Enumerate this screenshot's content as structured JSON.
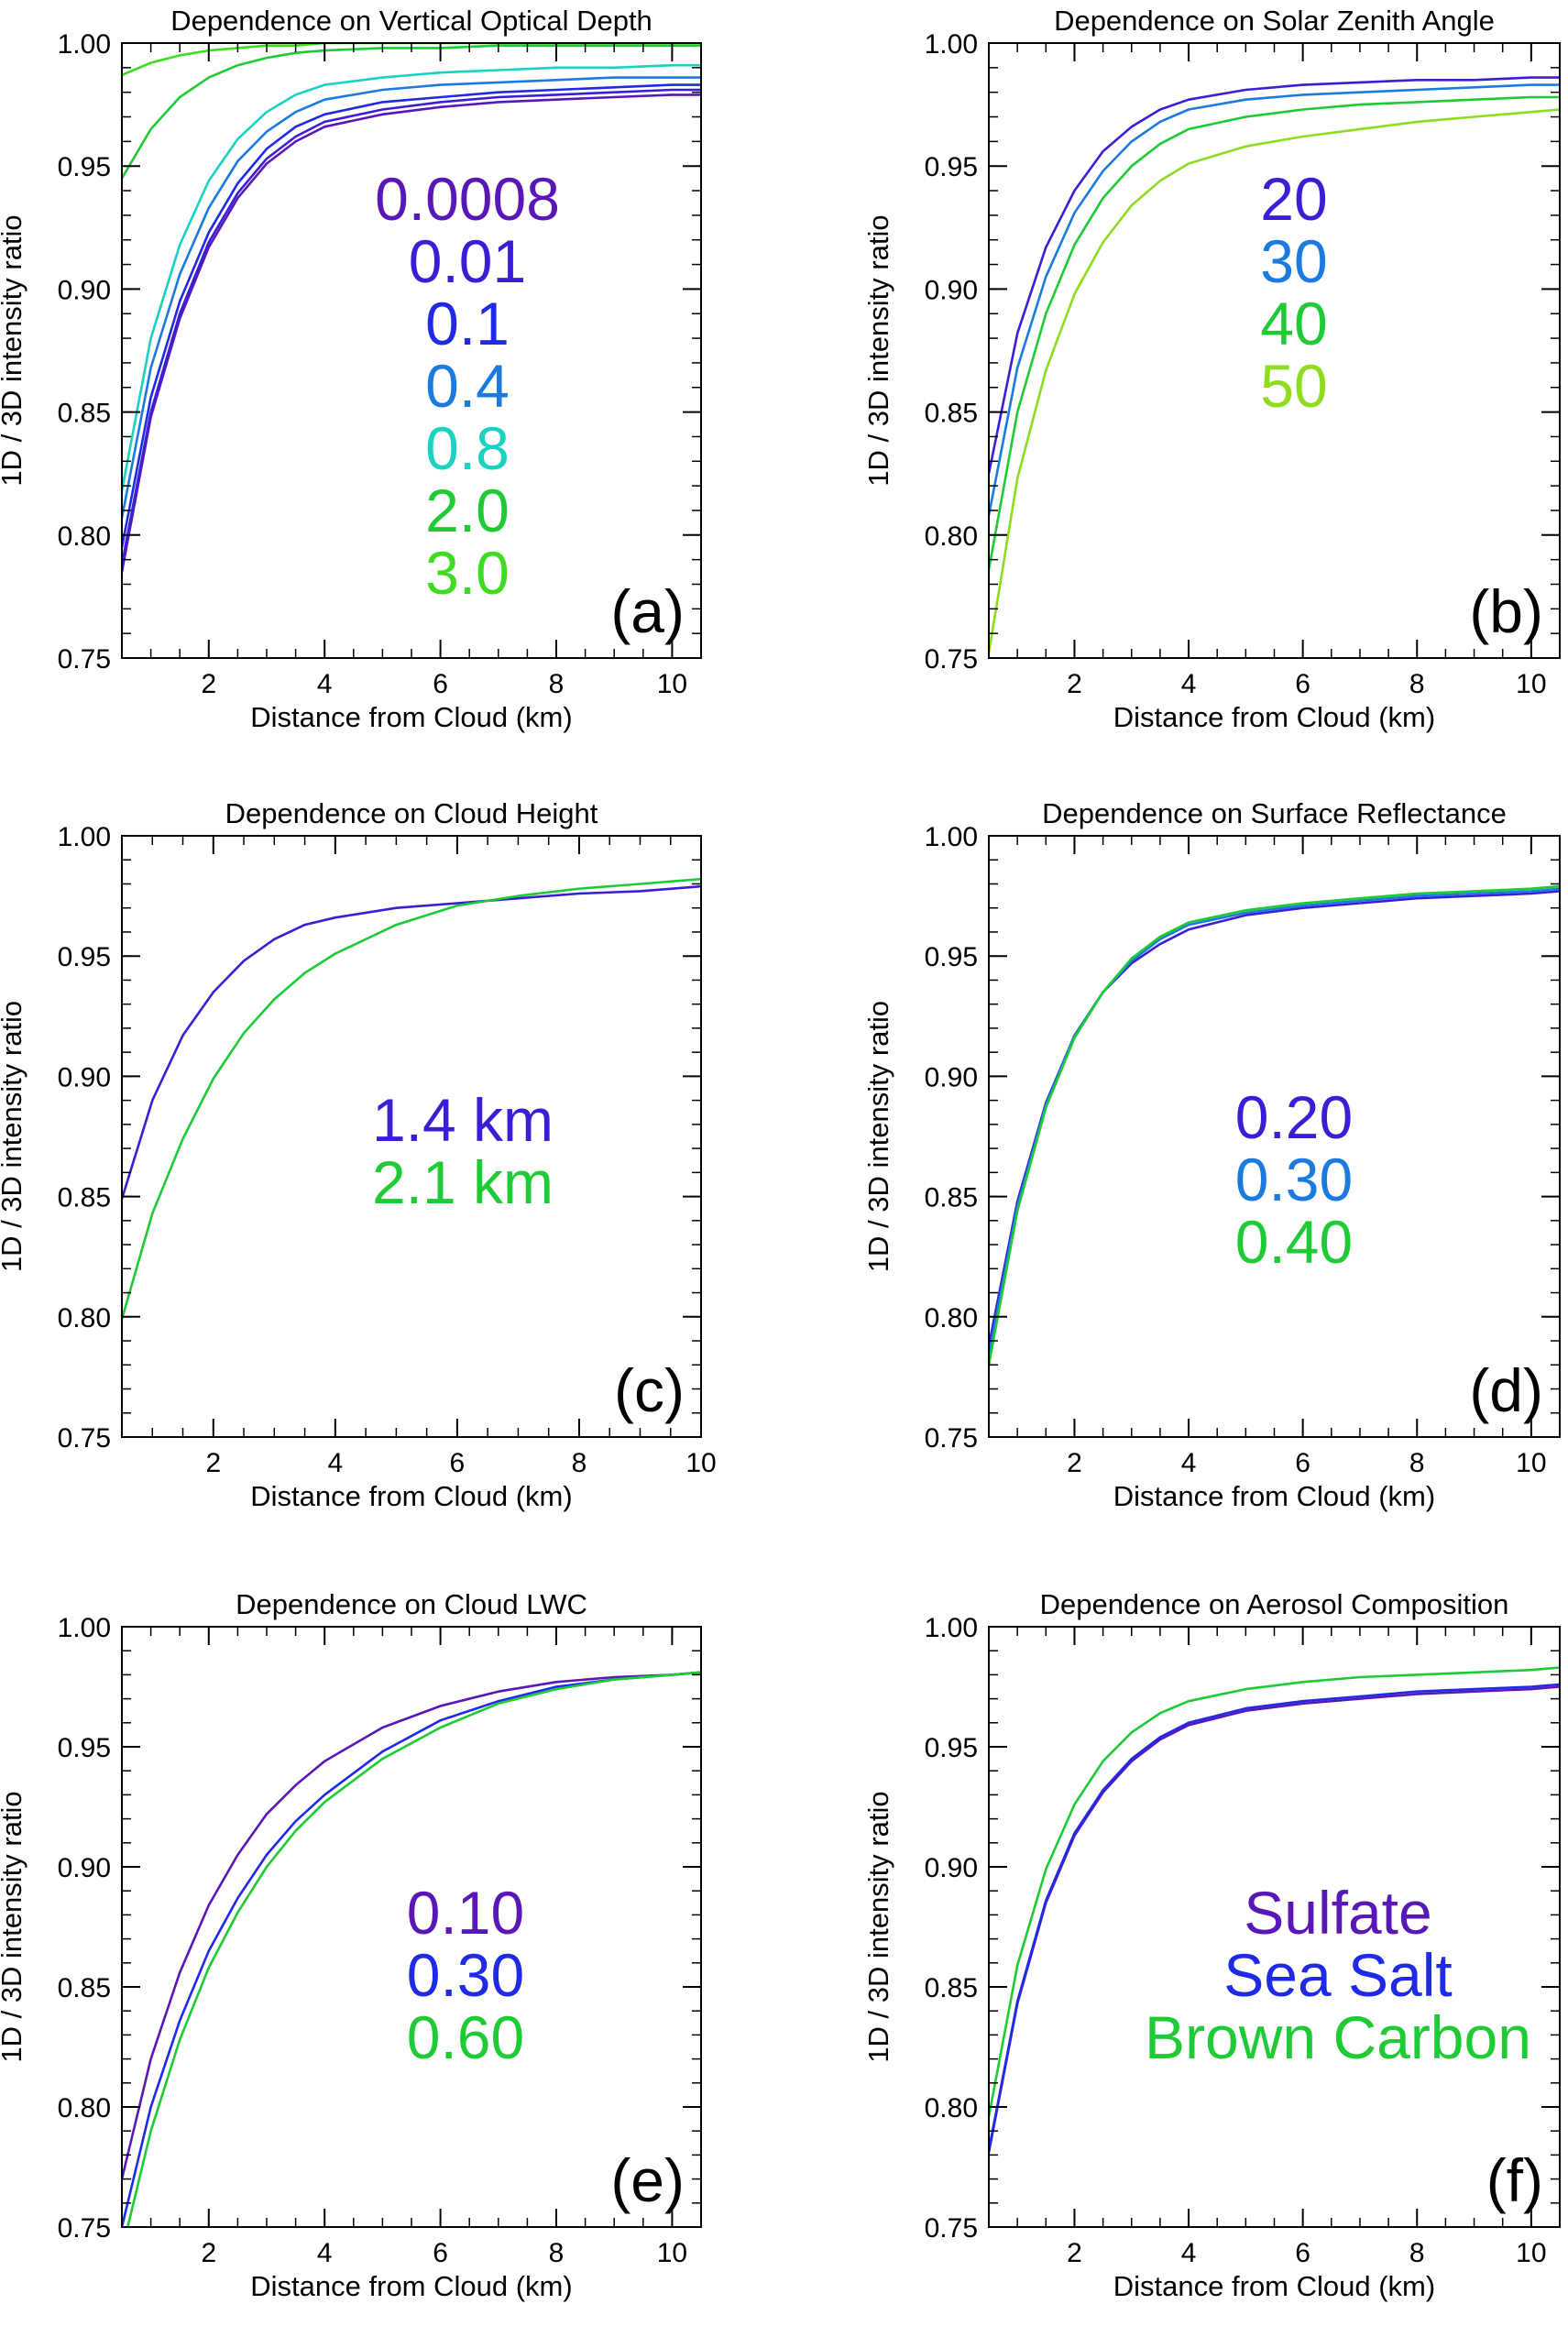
{
  "chart_data": [
    {
      "type": "line",
      "title": "Dependence on Vertical Optical Depth",
      "xlabel": "Distance from Cloud (km)",
      "ylabel": "1D / 3D intensity ratio",
      "xlim": [
        0.5,
        10.5
      ],
      "ylim": [
        0.75,
        1.0
      ],
      "xticks": [
        "2",
        "4",
        "6",
        "8",
        "10"
      ],
      "yticks": [
        "0.75",
        "0.80",
        "0.85",
        "0.90",
        "0.95",
        "1.00"
      ],
      "panel_label": "(a)",
      "legend_placement": "center",
      "x": [
        0.5,
        1,
        1.5,
        2,
        2.5,
        3,
        3.5,
        4,
        5,
        6,
        7,
        8,
        9,
        10,
        10.5
      ],
      "series": [
        {
          "name": "0.0008",
          "color": "#5a17b8",
          "values": [
            0.785,
            0.848,
            0.888,
            0.917,
            0.937,
            0.951,
            0.96,
            0.966,
            0.971,
            0.974,
            0.976,
            0.977,
            0.978,
            0.979,
            0.979
          ]
        },
        {
          "name": "0.01",
          "color": "#3a1ed6",
          "values": [
            0.788,
            0.85,
            0.89,
            0.919,
            0.939,
            0.953,
            0.962,
            0.968,
            0.973,
            0.976,
            0.978,
            0.979,
            0.98,
            0.981,
            0.981
          ]
        },
        {
          "name": "0.1",
          "color": "#1e2ae6",
          "values": [
            0.795,
            0.856,
            0.895,
            0.923,
            0.943,
            0.957,
            0.966,
            0.971,
            0.976,
            0.978,
            0.98,
            0.981,
            0.982,
            0.983,
            0.983
          ]
        },
        {
          "name": "0.4",
          "color": "#1a7ae0",
          "values": [
            0.807,
            0.868,
            0.906,
            0.933,
            0.952,
            0.964,
            0.972,
            0.977,
            0.981,
            0.983,
            0.984,
            0.985,
            0.986,
            0.986,
            0.986
          ]
        },
        {
          "name": "0.8",
          "color": "#19d2c2",
          "values": [
            0.818,
            0.88,
            0.918,
            0.944,
            0.961,
            0.972,
            0.979,
            0.983,
            0.986,
            0.988,
            0.989,
            0.99,
            0.99,
            0.991,
            0.991
          ]
        },
        {
          "name": "2.0",
          "color": "#1ecb35",
          "values": [
            0.945,
            0.965,
            0.978,
            0.986,
            0.991,
            0.994,
            0.996,
            0.997,
            0.998,
            0.998,
            0.999,
            0.999,
            0.999,
            0.999,
            0.999
          ]
        },
        {
          "name": "3.0",
          "color": "#3cdc1e",
          "values": [
            0.987,
            0.992,
            0.995,
            0.997,
            0.998,
            0.999,
            0.999,
            1.0,
            1.0,
            1.0,
            1.0,
            1.0,
            1.0,
            1.0,
            1.0
          ]
        }
      ]
    },
    {
      "type": "line",
      "title": "Dependence on Solar Zenith Angle",
      "xlabel": "Distance from Cloud (km)",
      "ylabel": "1D / 3D intensity ratio",
      "xlim": [
        0.5,
        10.5
      ],
      "ylim": [
        0.75,
        1.0
      ],
      "xticks": [
        "2",
        "4",
        "6",
        "8",
        "10"
      ],
      "yticks": [
        "0.75",
        "0.80",
        "0.85",
        "0.90",
        "0.95",
        "1.00"
      ],
      "panel_label": "(b)",
      "legend_placement": "center",
      "x": [
        0.5,
        1,
        1.5,
        2,
        2.5,
        3,
        3.5,
        4,
        5,
        6,
        7,
        8,
        9,
        10,
        10.5
      ],
      "series": [
        {
          "name": "20",
          "color": "#3a1ed6",
          "values": [
            0.825,
            0.882,
            0.917,
            0.94,
            0.956,
            0.966,
            0.973,
            0.977,
            0.981,
            0.983,
            0.984,
            0.985,
            0.985,
            0.986,
            0.986
          ]
        },
        {
          "name": "30",
          "color": "#1a7ae0",
          "values": [
            0.808,
            0.868,
            0.905,
            0.931,
            0.948,
            0.96,
            0.968,
            0.973,
            0.977,
            0.979,
            0.98,
            0.981,
            0.982,
            0.983,
            0.983
          ]
        },
        {
          "name": "40",
          "color": "#1ecb35",
          "values": [
            0.786,
            0.85,
            0.89,
            0.918,
            0.937,
            0.95,
            0.959,
            0.965,
            0.97,
            0.973,
            0.975,
            0.976,
            0.977,
            0.978,
            0.978
          ]
        },
        {
          "name": "50",
          "color": "#8ddc1e",
          "values": [
            0.752,
            0.823,
            0.867,
            0.898,
            0.919,
            0.934,
            0.944,
            0.951,
            0.958,
            0.962,
            0.965,
            0.968,
            0.97,
            0.972,
            0.973
          ]
        }
      ]
    },
    {
      "type": "line",
      "title": "Dependence on Cloud Height",
      "xlabel": "Distance from Cloud (km)",
      "ylabel": "1D / 3D intensity ratio",
      "xlim": [
        0.5,
        10
      ],
      "ylim": [
        0.75,
        1.0
      ],
      "xticks": [
        "2",
        "4",
        "6",
        "8",
        "10"
      ],
      "yticks": [
        "0.75",
        "0.80",
        "0.85",
        "0.90",
        "0.95",
        "1.00"
      ],
      "panel_label": "(c)",
      "legend_placement": "center",
      "x": [
        0.5,
        1,
        1.5,
        2,
        2.5,
        3,
        3.5,
        4,
        5,
        6,
        7,
        8,
        9,
        10
      ],
      "series": [
        {
          "name": "1.4 km",
          "color": "#3a1ed6",
          "values": [
            0.849,
            0.89,
            0.917,
            0.935,
            0.948,
            0.957,
            0.963,
            0.966,
            0.97,
            0.972,
            0.974,
            0.976,
            0.977,
            0.979
          ]
        },
        {
          "name": "2.1 km",
          "color": "#1ecb35",
          "values": [
            0.799,
            0.843,
            0.874,
            0.899,
            0.918,
            0.932,
            0.943,
            0.951,
            0.963,
            0.971,
            0.975,
            0.978,
            0.98,
            0.982
          ]
        }
      ]
    },
    {
      "type": "line",
      "title": "Dependence on Surface Reflectance",
      "xlabel": "Distance from Cloud (km)",
      "ylabel": "1D / 3D intensity ratio",
      "xlim": [
        0.5,
        10.5
      ],
      "ylim": [
        0.75,
        1.0
      ],
      "xticks": [
        "2",
        "4",
        "6",
        "8",
        "10"
      ],
      "yticks": [
        "0.75",
        "0.80",
        "0.85",
        "0.90",
        "0.95",
        "1.00"
      ],
      "panel_label": "(d)",
      "legend_placement": "center",
      "x": [
        0.5,
        1,
        1.5,
        2,
        2.5,
        3,
        3.5,
        4,
        5,
        6,
        7,
        8,
        9,
        10,
        10.5
      ],
      "series": [
        {
          "name": "0.20",
          "color": "#3a1ed6",
          "values": [
            0.788,
            0.848,
            0.889,
            0.917,
            0.935,
            0.947,
            0.955,
            0.961,
            0.967,
            0.97,
            0.972,
            0.974,
            0.975,
            0.976,
            0.977
          ]
        },
        {
          "name": "0.30",
          "color": "#1a7ae0",
          "values": [
            0.784,
            0.846,
            0.888,
            0.917,
            0.935,
            0.948,
            0.957,
            0.963,
            0.968,
            0.971,
            0.973,
            0.975,
            0.976,
            0.977,
            0.978
          ]
        },
        {
          "name": "0.40",
          "color": "#1ecb35",
          "values": [
            0.78,
            0.844,
            0.887,
            0.916,
            0.935,
            0.949,
            0.958,
            0.964,
            0.969,
            0.972,
            0.974,
            0.976,
            0.977,
            0.978,
            0.979
          ]
        }
      ]
    },
    {
      "type": "line",
      "title": "Dependence on Cloud LWC",
      "xlabel": "Distance from Cloud (km)",
      "ylabel": "1D / 3D intensity ratio",
      "xlim": [
        0.5,
        10.5
      ],
      "ylim": [
        0.75,
        1.0
      ],
      "xticks": [
        "2",
        "4",
        "6",
        "8",
        "10"
      ],
      "yticks": [
        "0.75",
        "0.80",
        "0.85",
        "0.90",
        "0.95",
        "1.00"
      ],
      "panel_label": "(e)",
      "legend_placement": "center",
      "x": [
        0.5,
        1,
        1.5,
        2,
        2.5,
        3,
        3.5,
        4,
        5,
        6,
        7,
        8,
        9,
        10,
        10.5
      ],
      "series": [
        {
          "name": "0.10",
          "color": "#5a17b8",
          "values": [
            0.77,
            0.82,
            0.856,
            0.884,
            0.905,
            0.922,
            0.934,
            0.944,
            0.958,
            0.967,
            0.973,
            0.977,
            0.979,
            0.98,
            0.981
          ]
        },
        {
          "name": "0.30",
          "color": "#1e2ae6",
          "values": [
            0.75,
            0.8,
            0.836,
            0.865,
            0.887,
            0.905,
            0.919,
            0.93,
            0.948,
            0.961,
            0.969,
            0.975,
            0.978,
            0.98,
            0.981
          ]
        },
        {
          "name": "0.60",
          "color": "#1ecb35",
          "values": [
            0.74,
            0.79,
            0.828,
            0.858,
            0.881,
            0.9,
            0.915,
            0.927,
            0.945,
            0.958,
            0.968,
            0.974,
            0.978,
            0.98,
            0.981
          ]
        }
      ]
    },
    {
      "type": "line",
      "title": "Dependence on Aerosol Composition",
      "xlabel": "Distance from Cloud (km)",
      "ylabel": "1D / 3D intensity ratio",
      "xlim": [
        0.5,
        10.5
      ],
      "ylim": [
        0.75,
        1.0
      ],
      "xticks": [
        "2",
        "4",
        "6",
        "8",
        "10"
      ],
      "yticks": [
        "0.75",
        "0.80",
        "0.85",
        "0.90",
        "0.95",
        "1.00"
      ],
      "panel_label": "(f)",
      "legend_placement": "center",
      "x": [
        0.5,
        1,
        1.5,
        2,
        2.5,
        3,
        3.5,
        4,
        5,
        6,
        7,
        8,
        9,
        10,
        10.5
      ],
      "series": [
        {
          "name": "Sulfate",
          "color": "#5a17b8",
          "values": [
            0.781,
            0.843,
            0.885,
            0.913,
            0.931,
            0.944,
            0.953,
            0.959,
            0.965,
            0.968,
            0.97,
            0.972,
            0.973,
            0.974,
            0.975
          ]
        },
        {
          "name": "Sea Salt",
          "color": "#1e2ae6",
          "values": [
            0.782,
            0.844,
            0.886,
            0.914,
            0.932,
            0.945,
            0.954,
            0.96,
            0.966,
            0.969,
            0.971,
            0.973,
            0.974,
            0.975,
            0.976
          ]
        },
        {
          "name": "Brown Carbon",
          "color": "#1ecb35",
          "values": [
            0.796,
            0.859,
            0.899,
            0.926,
            0.944,
            0.956,
            0.964,
            0.969,
            0.974,
            0.977,
            0.979,
            0.98,
            0.981,
            0.982,
            0.983
          ]
        }
      ]
    }
  ]
}
